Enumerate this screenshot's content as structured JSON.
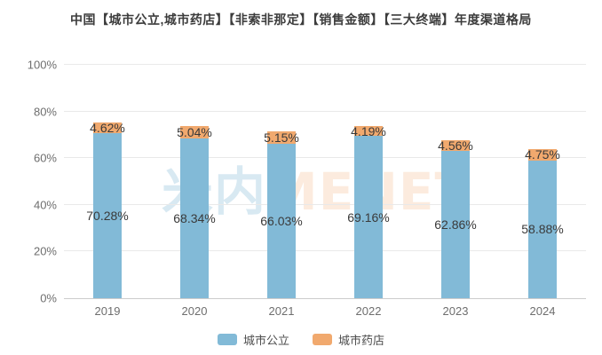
{
  "title": "中国【城市公立,城市药店】【非索非那定】【销售金额】【三大终端】年度渠道格局",
  "watermark": {
    "part1": "米内",
    "part2": "MENET"
  },
  "colors": {
    "series_blue": "#82BAD7",
    "series_orange": "#F1A96E",
    "gridline": "#e9e9e9",
    "axis_line": "#cccccc",
    "tick_text": "#6e6e6e",
    "data_label_text": "#3a3a3a"
  },
  "chart_data": {
    "type": "bar",
    "stacked": true,
    "title": "中国【城市公立,城市药店】【非索非那定】【销售金额】【三大终端】年度渠道格局",
    "categories": [
      "2019",
      "2020",
      "2021",
      "2022",
      "2023",
      "2024"
    ],
    "series": [
      {
        "name": "城市公立",
        "color": "#82BAD7",
        "values": [
          70.28,
          68.34,
          66.03,
          69.16,
          62.86,
          58.88
        ]
      },
      {
        "name": "城市药店",
        "color": "#F1A96E",
        "values": [
          4.62,
          5.04,
          5.15,
          4.19,
          4.56,
          4.75
        ]
      }
    ],
    "value_suffix": "%",
    "xlabel": "",
    "ylabel": "",
    "ylim": [
      0,
      100
    ],
    "yticks": [
      0,
      20,
      40,
      60,
      80,
      100
    ],
    "ytick_suffix": "%",
    "grid": true,
    "legend_position": "bottom"
  }
}
